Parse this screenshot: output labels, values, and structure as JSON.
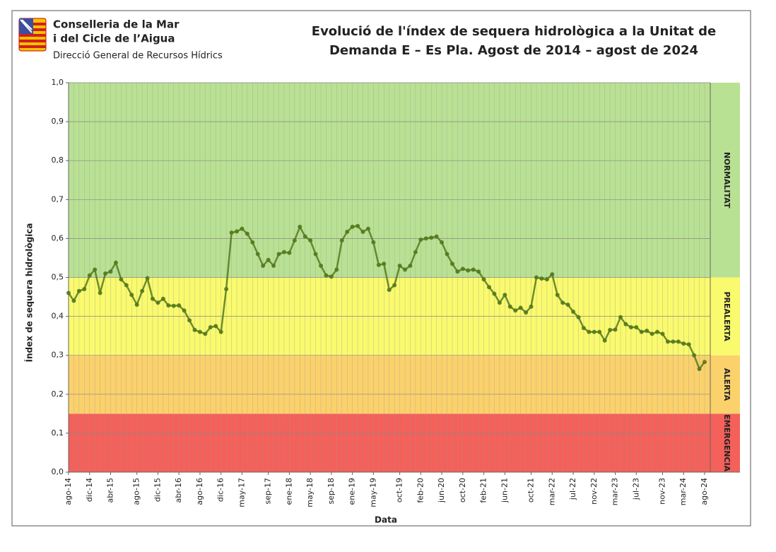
{
  "header": {
    "org_line1": "Conselleria de la Mar",
    "org_line2": "i del Cicle de l’Aigua",
    "org_line3": "Direcció General de Recursos Hídrics"
  },
  "chart_data": {
    "type": "line",
    "title_line1": "Evolució de l'índex de sequera hidrològica a la Unitat de",
    "title_line2": "Demanda E – Es Pla. Agost de 2014 – agost de 2024",
    "y_label": "Índex de sequera hidrològica",
    "x_label": "Data",
    "categories": [
      "ago-14",
      null,
      null,
      null,
      "dic-14",
      null,
      null,
      null,
      "abr-15",
      null,
      null,
      null,
      null,
      "ago-15",
      null,
      null,
      null,
      "dic-15",
      null,
      null,
      null,
      "abr-16",
      null,
      null,
      null,
      "ago-16",
      null,
      null,
      null,
      "dic-16",
      null,
      null,
      null,
      "may-17",
      null,
      null,
      null,
      null,
      "sep-17",
      null,
      null,
      null,
      "ene-18",
      null,
      null,
      null,
      "may-18",
      null,
      null,
      null,
      "sep-18",
      null,
      null,
      null,
      "ene-19",
      null,
      null,
      null,
      "may-19",
      null,
      null,
      null,
      null,
      "oct-19",
      null,
      null,
      null,
      "feb-20",
      null,
      null,
      null,
      "jun-20",
      null,
      null,
      null,
      "oct-20",
      null,
      null,
      null,
      "feb-21",
      null,
      null,
      null,
      "jun-21",
      null,
      null,
      null,
      null,
      "oct-21",
      null,
      null,
      null,
      "mar-22",
      null,
      null,
      null,
      "jul-22",
      null,
      null,
      null,
      "nov-22",
      null,
      null,
      null,
      "mar-23",
      null,
      null,
      null,
      "jul-23",
      null,
      null,
      null,
      null,
      "nov-23",
      null,
      null,
      null,
      "mar-24",
      null,
      null,
      null,
      "ago-24"
    ],
    "series": [
      {
        "color": "#55791f",
        "values": [
          0.46,
          0.44,
          0.465,
          0.47,
          0.505,
          0.52,
          0.46,
          0.51,
          0.515,
          0.538,
          0.495,
          0.48,
          0.455,
          0.43,
          0.465,
          0.498,
          0.445,
          0.435,
          0.445,
          0.428,
          0.427,
          0.428,
          0.415,
          0.39,
          0.365,
          0.36,
          0.355,
          0.372,
          0.375,
          0.36,
          0.47,
          0.615,
          0.618,
          0.625,
          0.612,
          0.59,
          0.56,
          0.53,
          0.545,
          0.53,
          0.56,
          0.565,
          0.563,
          0.595,
          0.63,
          0.605,
          0.595,
          0.56,
          0.53,
          0.505,
          0.502,
          0.52,
          0.595,
          0.617,
          0.63,
          0.632,
          0.617,
          0.625,
          0.59,
          0.532,
          0.535,
          0.468,
          0.48,
          0.53,
          0.52,
          0.53,
          0.565,
          0.597,
          0.6,
          0.602,
          0.605,
          0.59,
          0.56,
          0.535,
          0.515,
          0.522,
          0.518,
          0.52,
          0.515,
          0.495,
          0.475,
          0.458,
          0.435,
          0.455,
          0.425,
          0.415,
          0.422,
          0.41,
          0.425,
          0.5,
          0.497,
          0.495,
          0.508,
          0.455,
          0.435,
          0.43,
          0.412,
          0.398,
          0.37,
          0.36,
          0.36,
          0.36,
          0.338,
          0.365,
          0.366,
          0.398,
          0.38,
          0.372,
          0.372,
          0.36,
          0.363,
          0.355,
          0.36,
          0.355,
          0.335,
          0.335,
          0.335,
          0.33,
          0.328,
          0.3,
          0.265,
          0.283
        ]
      }
    ],
    "ylim": [
      0,
      1
    ],
    "yticks": [
      {
        "value": 0,
        "label": "0,0"
      },
      {
        "value": 0.1,
        "label": "0,1"
      },
      {
        "value": 0.2,
        "label": "0,2"
      },
      {
        "value": 0.3,
        "label": "0,3"
      },
      {
        "value": 0.4,
        "label": "0,4"
      },
      {
        "value": 0.5,
        "label": "0,5"
      },
      {
        "value": 0.6,
        "label": "0,6"
      },
      {
        "value": 0.7,
        "label": "0,7"
      },
      {
        "value": 0.8,
        "label": "0,8"
      },
      {
        "value": 0.9,
        "label": "0,9"
      },
      {
        "value": 1,
        "label": "1,0"
      }
    ],
    "zones": [
      {
        "label": "EMERGENCIA",
        "from": 0,
        "to": 0.15,
        "color": "#f4605a"
      },
      {
        "label": "ALERTA",
        "from": 0.15,
        "to": 0.3,
        "color": "#fbd16c"
      },
      {
        "label": "PREALERTA",
        "from": 0.3,
        "to": 0.5,
        "color": "#fafa6e"
      },
      {
        "label": "NORMALITAT",
        "from": 0.5,
        "to": 1,
        "color": "#b9e193"
      }
    ],
    "grid": true
  }
}
